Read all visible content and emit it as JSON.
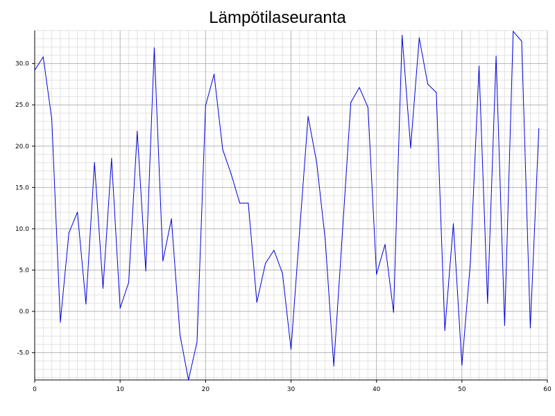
{
  "chart_data": {
    "type": "line",
    "title": "Lämpötilaseuranta",
    "xlabel": "",
    "ylabel": "",
    "xlim": [
      0,
      60
    ],
    "ylim": [
      -8.3,
      34.0
    ],
    "x_ticks": [
      0,
      10,
      20,
      30,
      40,
      50,
      60
    ],
    "x_tick_labels": [
      "0",
      "10",
      "20",
      "30",
      "40",
      "50",
      "60"
    ],
    "y_ticks": [
      -5,
      0,
      5,
      10,
      15,
      20,
      25,
      30
    ],
    "y_tick_labels": [
      "-5.0",
      "0.0",
      "5.0",
      "10.0",
      "15.0",
      "20.0",
      "25.0",
      "30.0"
    ],
    "grid": true,
    "legend": "none",
    "series": [
      {
        "color": "#0000dd",
        "x": [
          0,
          1,
          2,
          3,
          4,
          5,
          6,
          7,
          8,
          9,
          10,
          11,
          12,
          13,
          14,
          15,
          16,
          17,
          18,
          19,
          20,
          21,
          22,
          23,
          24,
          25,
          26,
          27,
          28,
          29,
          30,
          31,
          32,
          33,
          34,
          35,
          36,
          37,
          38,
          39,
          40,
          41,
          42,
          43,
          44,
          45,
          46,
          47,
          48,
          49,
          50,
          51,
          52,
          53,
          54,
          55,
          56,
          57,
          58,
          59
        ],
        "y": [
          29.2,
          30.8,
          23.3,
          -1.3,
          9.5,
          12.0,
          0.9,
          18.0,
          2.8,
          18.5,
          0.4,
          3.5,
          21.8,
          4.9,
          31.9,
          6.1,
          11.2,
          -2.8,
          -8.3,
          -3.7,
          24.9,
          28.7,
          19.6,
          16.6,
          13.1,
          13.1,
          1.1,
          5.8,
          7.4,
          4.6,
          -4.6,
          9.6,
          23.6,
          18.0,
          8.7,
          -6.6,
          9.3,
          25.3,
          27.1,
          24.7,
          4.5,
          8.1,
          -0.1,
          33.4,
          19.8,
          33.1,
          27.5,
          26.5,
          -2.3,
          10.6,
          -6.5,
          6.0,
          29.7,
          1.0,
          30.9,
          -1.7,
          33.9,
          32.7,
          -2.0,
          22.1
        ]
      }
    ]
  }
}
